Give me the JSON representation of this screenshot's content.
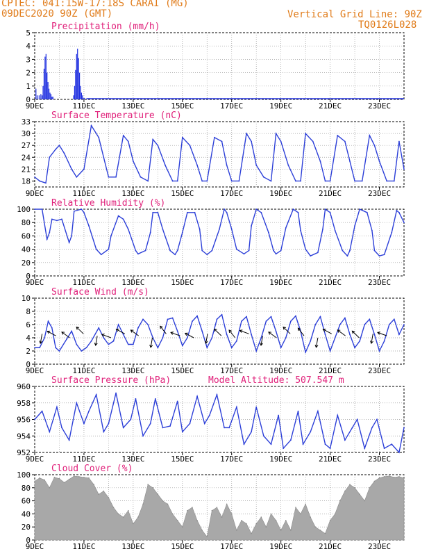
{
  "header": {
    "line1": "CPTEC:   041:15W-17:18S   CARAI (MG)",
    "line2": "09DEC2020 90Z (GMT)",
    "grid_note": "Vertical Grid Line: 90Z",
    "model_code": "TQ0126L028"
  },
  "x_ticks": [
    "9DEC",
    "11DEC",
    "13DEC",
    "15DEC",
    "17DEC",
    "19DEC",
    "21DEC",
    "23DEC"
  ],
  "colors": {
    "title": "#e0207a",
    "line": "#2c3fd8",
    "bar": "#1f2fe0",
    "cloud": "#a8a8a8",
    "header": "#e07b19"
  },
  "chart_data": [
    {
      "type": "bar",
      "title": "Precipitation (mm/h)",
      "ylim": [
        0,
        5
      ],
      "yticks": [
        "0",
        "1",
        "2",
        "3",
        "4",
        "5"
      ],
      "x": [
        0.05,
        0.1,
        0.18,
        0.25,
        0.3,
        0.34,
        0.38,
        0.42,
        0.46,
        0.5,
        0.54,
        0.58,
        0.62,
        0.66,
        0.7,
        0.74,
        1.58,
        1.62,
        1.66,
        1.7,
        1.74,
        1.78,
        1.82,
        1.86,
        1.9,
        1.94,
        1.98,
        2.02
      ],
      "values": [
        0.8,
        0.3,
        0.3,
        0.4,
        0.3,
        1.0,
        2.3,
        3.2,
        3.4,
        2.0,
        1.3,
        0.8,
        0.5,
        0.4,
        0.2,
        0.2,
        0.3,
        1.0,
        2.2,
        3.4,
        3.8,
        3.1,
        2.0,
        1.0,
        0.5,
        0.3,
        0.1,
        0.1
      ]
    },
    {
      "type": "line",
      "title": "Surface Temperature (nC)",
      "ylim": [
        16.5,
        33
      ],
      "yticks": [
        "18",
        "21",
        "24",
        "27",
        "30",
        "33"
      ],
      "x": [
        0,
        0.2,
        0.45,
        0.6,
        0.85,
        1.0,
        1.2,
        1.5,
        1.7,
        2.0,
        2.3,
        2.6,
        2.8,
        3.0,
        3.3,
        3.6,
        3.8,
        4.0,
        4.3,
        4.6,
        4.8,
        5.0,
        5.3,
        5.6,
        5.8,
        6.0,
        6.3,
        6.6,
        6.8,
        7.0,
        7.3,
        7.6,
        7.8,
        8.0,
        8.3,
        8.6,
        8.8,
        9.0,
        9.3,
        9.6,
        9.8,
        10.0,
        10.3,
        10.6,
        10.8,
        11.0,
        11.3,
        11.6,
        11.8,
        12.0,
        12.3,
        12.6,
        12.8,
        13.0,
        13.3,
        13.6,
        13.8,
        14.0,
        14.3,
        14.6,
        14.8,
        15.0
      ],
      "values": [
        19,
        18,
        17.5,
        24,
        26,
        27,
        25,
        21,
        19,
        21,
        32,
        29,
        24,
        19,
        19,
        29.5,
        28,
        23,
        19,
        18,
        28.5,
        27,
        22,
        18,
        18,
        29,
        27,
        22,
        18,
        18,
        29,
        28,
        22,
        18,
        18,
        30,
        28,
        22,
        19,
        18,
        30,
        28,
        22,
        18,
        18,
        30,
        28,
        23,
        18,
        18,
        29.5,
        28,
        23,
        18,
        18,
        29.5,
        27,
        23,
        18,
        18,
        28,
        21
      ]
    },
    {
      "type": "line",
      "title": "Relative Humidity (%)",
      "ylim": [
        0,
        100
      ],
      "yticks": [
        "0",
        "20",
        "40",
        "60",
        "80",
        "100"
      ],
      "x": [
        0,
        0.3,
        0.5,
        0.6,
        0.7,
        0.9,
        1.1,
        1.4,
        1.5,
        1.6,
        1.9,
        2.0,
        2.2,
        2.5,
        2.7,
        3.0,
        3.1,
        3.4,
        3.6,
        3.8,
        4.1,
        4.2,
        4.5,
        4.7,
        4.8,
        5.0,
        5.2,
        5.5,
        5.7,
        5.8,
        6.0,
        6.2,
        6.5,
        6.7,
        6.8,
        7.0,
        7.2,
        7.5,
        7.7,
        7.8,
        8.0,
        8.2,
        8.5,
        8.7,
        8.8,
        9.0,
        9.2,
        9.5,
        9.7,
        9.8,
        10.0,
        10.2,
        10.5,
        10.7,
        10.8,
        11.0,
        11.2,
        11.5,
        11.7,
        11.8,
        12.0,
        12.2,
        12.5,
        12.7,
        12.8,
        13.0,
        13.2,
        13.5,
        13.7,
        13.8,
        14.0,
        14.2,
        14.5,
        14.7,
        14.8,
        15.0
      ],
      "values": [
        100,
        100,
        55,
        65,
        85,
        83,
        85,
        50,
        60,
        97,
        100,
        95,
        75,
        40,
        32,
        40,
        60,
        90,
        85,
        70,
        38,
        33,
        38,
        65,
        95,
        95,
        70,
        38,
        32,
        38,
        65,
        95,
        95,
        70,
        38,
        32,
        38,
        70,
        100,
        95,
        70,
        40,
        33,
        38,
        75,
        100,
        95,
        65,
        38,
        33,
        38,
        72,
        100,
        95,
        68,
        40,
        30,
        35,
        70,
        100,
        95,
        68,
        38,
        30,
        38,
        75,
        100,
        95,
        68,
        38,
        30,
        32,
        65,
        98,
        95,
        80
      ]
    },
    {
      "type": "line",
      "title": "Surface Wind (m/s)",
      "ylim": [
        0,
        10
      ],
      "yticks": [
        "0",
        "2",
        "4",
        "6",
        "8",
        "10"
      ],
      "x": [
        0,
        0.2,
        0.4,
        0.55,
        0.7,
        0.85,
        1.0,
        1.3,
        1.5,
        1.7,
        1.9,
        2.1,
        2.3,
        2.6,
        2.8,
        3.0,
        3.2,
        3.4,
        3.6,
        3.8,
        4.0,
        4.2,
        4.4,
        4.6,
        4.8,
        5.0,
        5.2,
        5.4,
        5.6,
        5.8,
        6.0,
        6.2,
        6.4,
        6.6,
        6.8,
        7.0,
        7.2,
        7.4,
        7.6,
        7.8,
        8.0,
        8.2,
        8.4,
        8.6,
        8.8,
        9.0,
        9.2,
        9.4,
        9.6,
        9.8,
        10.0,
        10.2,
        10.4,
        10.6,
        10.8,
        11.0,
        11.2,
        11.4,
        11.6,
        11.8,
        12.0,
        12.2,
        12.4,
        12.6,
        12.8,
        13.0,
        13.2,
        13.4,
        13.6,
        13.8,
        14.0,
        14.2,
        14.4,
        14.6,
        14.8,
        15.0
      ],
      "values": [
        2.5,
        2.5,
        4.0,
        6.5,
        5.5,
        2.5,
        2.0,
        3.8,
        5.0,
        3.0,
        2.0,
        2.5,
        3.5,
        5.5,
        4.0,
        3.0,
        3.5,
        6.0,
        4.5,
        3.0,
        3.0,
        5.5,
        6.8,
        6.0,
        4.0,
        2.5,
        4.0,
        6.8,
        7.0,
        5.0,
        2.8,
        4.0,
        6.5,
        7.3,
        5.0,
        2.5,
        4.0,
        6.8,
        7.5,
        4.5,
        2.5,
        3.5,
        6.5,
        7.2,
        4.5,
        2.0,
        4.0,
        6.5,
        7.2,
        5.0,
        2.5,
        4.0,
        6.5,
        7.3,
        5.0,
        1.8,
        3.5,
        6.0,
        7.2,
        4.5,
        2.0,
        4.0,
        6.0,
        7.0,
        4.5,
        2.5,
        3.5,
        6.0,
        6.8,
        4.5,
        2.0,
        3.5,
        6.0,
        6.8,
        4.5,
        6.0
      ]
    },
    {
      "type": "line",
      "title": "Surface Pressure (hPa)",
      "note": "Model Altitude: 507.547 m",
      "ylim": [
        952,
        960
      ],
      "yticks": [
        "952",
        "954",
        "956",
        "958",
        "960"
      ],
      "x": [
        0,
        0.3,
        0.6,
        0.9,
        1.1,
        1.4,
        1.7,
        2.0,
        2.2,
        2.5,
        2.8,
        3.0,
        3.3,
        3.6,
        3.9,
        4.1,
        4.4,
        4.7,
        4.9,
        5.2,
        5.5,
        5.8,
        6.0,
        6.3,
        6.6,
        6.9,
        7.1,
        7.4,
        7.7,
        7.9,
        8.2,
        8.5,
        8.8,
        9.0,
        9.3,
        9.6,
        9.9,
        10.1,
        10.4,
        10.7,
        10.9,
        11.2,
        11.5,
        11.8,
        12.0,
        12.3,
        12.6,
        12.9,
        13.1,
        13.4,
        13.7,
        13.9,
        14.2,
        14.5,
        14.8,
        15.0
      ],
      "values": [
        956,
        957,
        954.5,
        957.5,
        955,
        953.5,
        958,
        955.5,
        957,
        959,
        954.5,
        955.5,
        959.2,
        955,
        956,
        958.5,
        954,
        955.5,
        958.5,
        955,
        955.2,
        958.2,
        954.5,
        955.5,
        958.8,
        955.5,
        956.5,
        959,
        955,
        955,
        957.5,
        953,
        954.5,
        957.5,
        954,
        953,
        956.5,
        952.5,
        953.5,
        957,
        953,
        954.5,
        957,
        953,
        952.5,
        956.5,
        953.5,
        955,
        956,
        952.5,
        955,
        956,
        952.5,
        953,
        952,
        955
      ]
    },
    {
      "type": "area",
      "title": "Cloud Cover (%)",
      "ylim": [
        0,
        100
      ],
      "yticks": [
        "0",
        "20",
        "40",
        "60",
        "80",
        "100"
      ],
      "x": [
        0,
        0.2,
        0.4,
        0.6,
        0.8,
        1.0,
        1.2,
        1.4,
        1.6,
        1.8,
        2.0,
        2.2,
        2.4,
        2.6,
        2.8,
        3.0,
        3.2,
        3.4,
        3.6,
        3.8,
        4.0,
        4.2,
        4.4,
        4.6,
        4.8,
        5.0,
        5.2,
        5.4,
        5.6,
        5.8,
        6.0,
        6.2,
        6.4,
        6.6,
        6.8,
        7.0,
        7.2,
        7.4,
        7.6,
        7.8,
        8.0,
        8.2,
        8.4,
        8.6,
        8.8,
        9.0,
        9.2,
        9.4,
        9.6,
        9.8,
        10.0,
        10.2,
        10.4,
        10.6,
        10.8,
        11.0,
        11.2,
        11.4,
        11.6,
        11.8,
        12.0,
        12.2,
        12.4,
        12.6,
        12.8,
        13.0,
        13.2,
        13.4,
        13.6,
        13.8,
        14.0,
        14.2,
        14.4,
        14.6,
        14.8,
        15.0
      ],
      "values": [
        90,
        95,
        92,
        80,
        96,
        94,
        88,
        93,
        98,
        97,
        96,
        95,
        85,
        70,
        75,
        65,
        50,
        40,
        35,
        45,
        25,
        35,
        55,
        85,
        80,
        70,
        60,
        55,
        40,
        30,
        20,
        45,
        50,
        30,
        15,
        5,
        45,
        50,
        35,
        55,
        40,
        15,
        30,
        25,
        10,
        25,
        35,
        20,
        40,
        30,
        15,
        30,
        15,
        50,
        40,
        55,
        35,
        20,
        15,
        10,
        30,
        40,
        60,
        75,
        85,
        80,
        70,
        60,
        80,
        90,
        95,
        97,
        98,
        96,
        97,
        95
      ]
    }
  ]
}
